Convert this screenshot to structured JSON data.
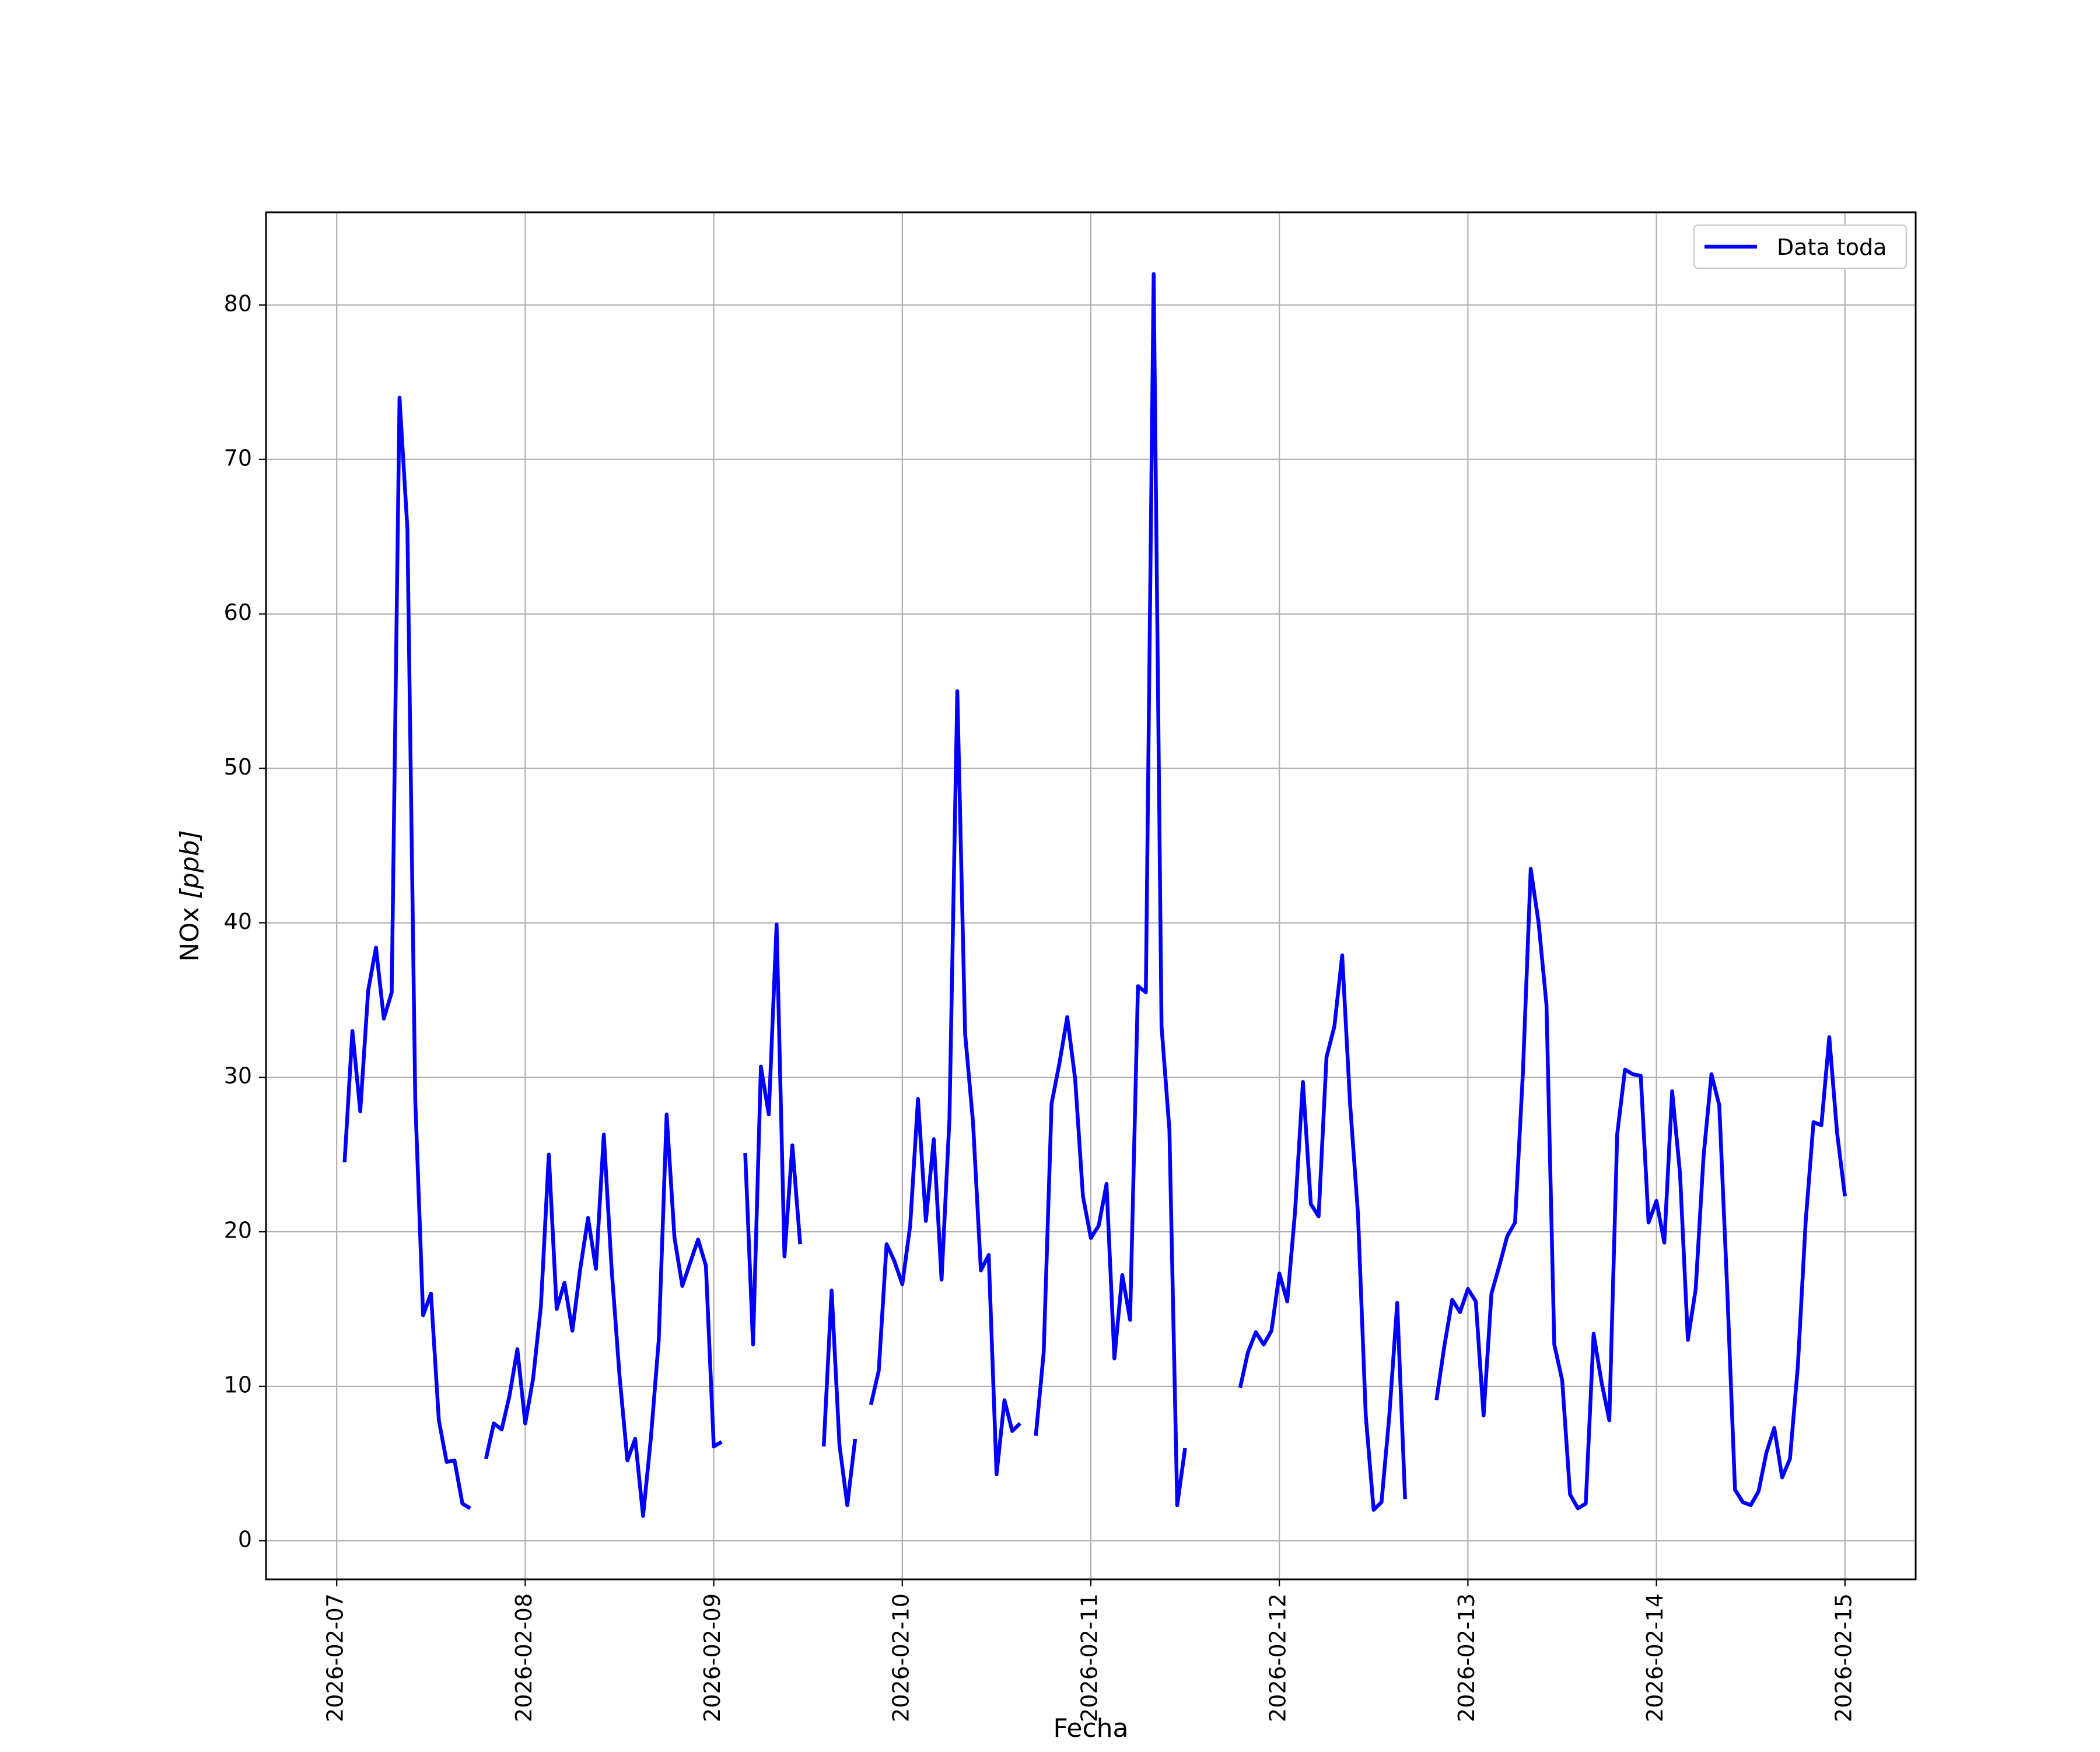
{
  "chart_data": {
    "type": "line",
    "title": "",
    "xlabel": "Fecha",
    "ylabel_prefix": "NOx ",
    "ylabel_unit": "[ppb]",
    "xlim": [
      "2026-02-06T15:00",
      "2026-02-15T09:00"
    ],
    "ylim": [
      -2.5,
      86
    ],
    "grid": true,
    "legend_position": "top-right",
    "x_ticks": [
      "2026-02-07",
      "2026-02-08",
      "2026-02-09",
      "2026-02-10",
      "2026-02-11",
      "2026-02-12",
      "2026-02-13",
      "2026-02-14",
      "2026-02-15"
    ],
    "y_ticks": [
      0,
      10,
      20,
      30,
      40,
      50,
      60,
      70,
      80
    ],
    "series": [
      {
        "name": "Data toda",
        "color": "#0000ff",
        "segments": [
          [
            [
              "2026-02-07T01:00",
              24.5
            ],
            [
              "2026-02-07T02:00",
              33.0
            ],
            [
              "2026-02-07T03:00",
              27.8
            ],
            [
              "2026-02-07T04:00",
              35.6
            ],
            [
              "2026-02-07T05:00",
              38.4
            ],
            [
              "2026-02-07T06:00",
              33.8
            ],
            [
              "2026-02-07T07:00",
              35.5
            ],
            [
              "2026-02-07T08:00",
              74.0
            ],
            [
              "2026-02-07T09:00",
              65.5
            ],
            [
              "2026-02-07T10:00",
              28.5
            ],
            [
              "2026-02-07T11:00",
              14.6
            ],
            [
              "2026-02-07T12:00",
              16.0
            ],
            [
              "2026-02-07T13:00",
              7.8
            ],
            [
              "2026-02-07T14:00",
              5.1
            ],
            [
              "2026-02-07T15:00",
              5.2
            ],
            [
              "2026-02-07T16:00",
              2.4
            ],
            [
              "2026-02-07T17:00",
              2.1
            ]
          ],
          [
            [
              "2026-02-07T19:00",
              5.3
            ],
            [
              "2026-02-07T20:00",
              7.6
            ],
            [
              "2026-02-07T21:00",
              7.2
            ],
            [
              "2026-02-07T22:00",
              9.4
            ],
            [
              "2026-02-07T23:00",
              12.4
            ],
            [
              "2026-02-08T00:00",
              7.6
            ],
            [
              "2026-02-08T01:00",
              10.5
            ],
            [
              "2026-02-08T02:00",
              15.2
            ],
            [
              "2026-02-08T03:00",
              25.0
            ],
            [
              "2026-02-08T04:00",
              15.0
            ],
            [
              "2026-02-08T05:00",
              16.7
            ],
            [
              "2026-02-08T06:00",
              13.6
            ],
            [
              "2026-02-08T07:00",
              17.6
            ],
            [
              "2026-02-08T08:00",
              20.9
            ],
            [
              "2026-02-08T09:00",
              17.6
            ],
            [
              "2026-02-08T10:00",
              26.3
            ],
            [
              "2026-02-08T11:00",
              17.6
            ],
            [
              "2026-02-08T12:00",
              10.7
            ],
            [
              "2026-02-08T13:00",
              5.2
            ],
            [
              "2026-02-08T14:00",
              6.6
            ],
            [
              "2026-02-08T15:00",
              1.6
            ],
            [
              "2026-02-08T16:00",
              6.7
            ],
            [
              "2026-02-08T17:00",
              13.0
            ],
            [
              "2026-02-08T18:00",
              27.6
            ],
            [
              "2026-02-08T19:00",
              19.6
            ],
            [
              "2026-02-08T20:00",
              16.5
            ],
            [
              "2026-02-08T21:00",
              18.0
            ],
            [
              "2026-02-08T22:00",
              19.5
            ],
            [
              "2026-02-08T23:00",
              17.8
            ],
            [
              "2026-02-09T00:00",
              6.1
            ],
            [
              "2026-02-09T01:00",
              6.4
            ]
          ],
          [
            [
              "2026-02-09T04:00",
              25.1
            ],
            [
              "2026-02-09T05:00",
              12.7
            ],
            [
              "2026-02-09T06:00",
              30.7
            ],
            [
              "2026-02-09T07:00",
              27.6
            ],
            [
              "2026-02-09T08:00",
              39.9
            ],
            [
              "2026-02-09T09:00",
              18.4
            ],
            [
              "2026-02-09T10:00",
              25.6
            ],
            [
              "2026-02-09T11:00",
              19.2
            ]
          ],
          [
            [
              "2026-02-09T14:00",
              6.1
            ],
            [
              "2026-02-09T15:00",
              16.2
            ],
            [
              "2026-02-09T16:00",
              6.2
            ],
            [
              "2026-02-09T17:00",
              2.3
            ],
            [
              "2026-02-09T18:00",
              6.6
            ]
          ],
          [
            [
              "2026-02-09T20:00",
              8.8
            ],
            [
              "2026-02-09T21:00",
              11.0
            ],
            [
              "2026-02-09T22:00",
              19.2
            ],
            [
              "2026-02-09T23:00",
              18.1
            ],
            [
              "2026-02-10T00:00",
              16.6
            ],
            [
              "2026-02-10T01:00",
              20.4
            ],
            [
              "2026-02-10T02:00",
              28.6
            ],
            [
              "2026-02-10T03:00",
              20.7
            ],
            [
              "2026-02-10T04:00",
              26.0
            ],
            [
              "2026-02-10T05:00",
              16.9
            ],
            [
              "2026-02-10T06:00",
              27.3
            ],
            [
              "2026-02-10T07:00",
              55.0
            ],
            [
              "2026-02-10T08:00",
              32.8
            ],
            [
              "2026-02-10T09:00",
              27.1
            ],
            [
              "2026-02-10T10:00",
              17.5
            ],
            [
              "2026-02-10T11:00",
              18.5
            ],
            [
              "2026-02-10T12:00",
              4.3
            ],
            [
              "2026-02-10T13:00",
              9.1
            ],
            [
              "2026-02-10T14:00",
              7.1
            ],
            [
              "2026-02-10T15:00",
              7.6
            ]
          ],
          [
            [
              "2026-02-10T17:00",
              6.8
            ],
            [
              "2026-02-10T18:00",
              12.2
            ],
            [
              "2026-02-10T19:00",
              28.3
            ],
            [
              "2026-02-10T20:00",
              30.9
            ],
            [
              "2026-02-10T21:00",
              33.9
            ],
            [
              "2026-02-10T22:00",
              29.9
            ],
            [
              "2026-02-10T23:00",
              22.3
            ],
            [
              "2026-02-11T00:00",
              19.6
            ],
            [
              "2026-02-11T01:00",
              20.4
            ],
            [
              "2026-02-11T02:00",
              23.1
            ],
            [
              "2026-02-11T03:00",
              11.8
            ],
            [
              "2026-02-11T04:00",
              17.2
            ],
            [
              "2026-02-11T05:00",
              14.3
            ],
            [
              "2026-02-11T06:00",
              35.9
            ],
            [
              "2026-02-11T07:00",
              35.5
            ],
            [
              "2026-02-11T08:00",
              82.0
            ],
            [
              "2026-02-11T09:00",
              33.3
            ],
            [
              "2026-02-11T10:00",
              26.6
            ],
            [
              "2026-02-11T11:00",
              2.3
            ],
            [
              "2026-02-11T12:00",
              6.0
            ]
          ],
          [
            [
              "2026-02-11T19:00",
              9.9
            ],
            [
              "2026-02-11T20:00",
              12.2
            ],
            [
              "2026-02-11T21:00",
              13.5
            ],
            [
              "2026-02-11T22:00",
              12.7
            ],
            [
              "2026-02-11T23:00",
              13.6
            ],
            [
              "2026-02-12T00:00",
              17.3
            ],
            [
              "2026-02-12T01:00",
              15.5
            ],
            [
              "2026-02-12T02:00",
              21.3
            ],
            [
              "2026-02-12T03:00",
              29.7
            ],
            [
              "2026-02-12T04:00",
              21.8
            ],
            [
              "2026-02-12T05:00",
              21.0
            ],
            [
              "2026-02-12T06:00",
              31.3
            ],
            [
              "2026-02-12T07:00",
              33.3
            ],
            [
              "2026-02-12T08:00",
              37.9
            ],
            [
              "2026-02-12T09:00",
              28.3
            ],
            [
              "2026-02-12T10:00",
              21.2
            ],
            [
              "2026-02-12T11:00",
              8.1
            ],
            [
              "2026-02-12T12:00",
              2.0
            ],
            [
              "2026-02-12T13:00",
              2.5
            ],
            [
              "2026-02-12T14:00",
              8.1
            ],
            [
              "2026-02-12T15:00",
              15.4
            ],
            [
              "2026-02-12T16:00",
              2.7
            ]
          ],
          [
            [
              "2026-02-12T20:00",
              9.1
            ],
            [
              "2026-02-12T21:00",
              12.6
            ],
            [
              "2026-02-12T22:00",
              15.6
            ],
            [
              "2026-02-12T23:00",
              14.8
            ],
            [
              "2026-02-13T00:00",
              16.3
            ],
            [
              "2026-02-13T01:00",
              15.5
            ],
            [
              "2026-02-13T02:00",
              8.1
            ],
            [
              "2026-02-13T03:00",
              16.0
            ],
            [
              "2026-02-13T04:00",
              17.8
            ],
            [
              "2026-02-13T05:00",
              19.7
            ],
            [
              "2026-02-13T06:00",
              20.6
            ],
            [
              "2026-02-13T07:00",
              30.3
            ],
            [
              "2026-02-13T08:00",
              43.5
            ],
            [
              "2026-02-13T09:00",
              40.0
            ],
            [
              "2026-02-13T10:00",
              34.7
            ],
            [
              "2026-02-13T11:00",
              12.7
            ],
            [
              "2026-02-13T12:00",
              10.4
            ],
            [
              "2026-02-13T13:00",
              3.0
            ],
            [
              "2026-02-13T14:00",
              2.1
            ],
            [
              "2026-02-13T15:00",
              2.4
            ],
            [
              "2026-02-13T16:00",
              13.4
            ],
            [
              "2026-02-13T17:00",
              10.3
            ],
            [
              "2026-02-13T18:00",
              7.8
            ],
            [
              "2026-02-13T19:00",
              26.3
            ],
            [
              "2026-02-13T20:00",
              30.5
            ],
            [
              "2026-02-13T21:00",
              30.2
            ],
            [
              "2026-02-13T22:00",
              30.1
            ],
            [
              "2026-02-13T23:00",
              20.6
            ],
            [
              "2026-02-14T00:00",
              22.0
            ],
            [
              "2026-02-14T01:00",
              19.3
            ],
            [
              "2026-02-14T02:00",
              29.1
            ],
            [
              "2026-02-14T03:00",
              23.8
            ],
            [
              "2026-02-14T04:00",
              13.0
            ],
            [
              "2026-02-14T05:00",
              16.3
            ],
            [
              "2026-02-14T06:00",
              24.9
            ],
            [
              "2026-02-14T07:00",
              30.2
            ],
            [
              "2026-02-14T08:00",
              28.2
            ],
            [
              "2026-02-14T09:00",
              16.4
            ],
            [
              "2026-02-14T10:00",
              3.3
            ],
            [
              "2026-02-14T11:00",
              2.5
            ],
            [
              "2026-02-14T12:00",
              2.3
            ],
            [
              "2026-02-14T13:00",
              3.2
            ],
            [
              "2026-02-14T14:00",
              5.7
            ],
            [
              "2026-02-14T15:00",
              7.3
            ],
            [
              "2026-02-14T16:00",
              4.1
            ],
            [
              "2026-02-14T17:00",
              5.3
            ],
            [
              "2026-02-14T18:00",
              11.3
            ],
            [
              "2026-02-14T19:00",
              20.7
            ],
            [
              "2026-02-14T20:00",
              27.1
            ],
            [
              "2026-02-14T21:00",
              26.9
            ],
            [
              "2026-02-14T22:00",
              32.6
            ],
            [
              "2026-02-14T23:00",
              26.4
            ],
            [
              "2026-02-15T00:00",
              22.3
            ]
          ]
        ]
      }
    ]
  }
}
